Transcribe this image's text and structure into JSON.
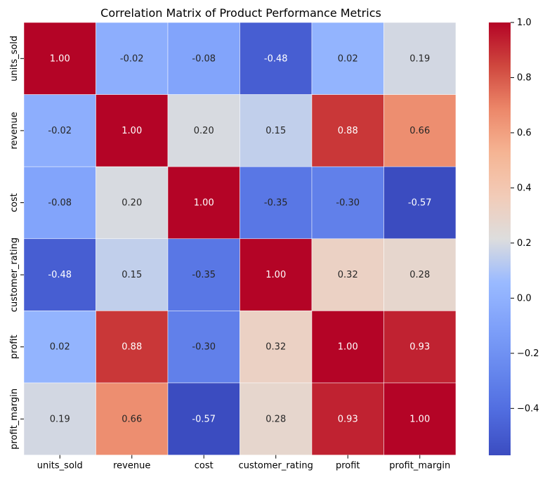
{
  "chart_data": {
    "type": "heatmap",
    "title": "Correlation Matrix of Product Performance Metrics",
    "x_labels": [
      "units_sold",
      "revenue",
      "cost",
      "customer_rating",
      "profit",
      "profit_margin"
    ],
    "y_labels": [
      "units_sold",
      "revenue",
      "cost",
      "customer_rating",
      "profit",
      "profit_margin"
    ],
    "values": [
      [
        1.0,
        -0.02,
        -0.08,
        -0.48,
        0.02,
        0.19
      ],
      [
        -0.02,
        1.0,
        0.2,
        0.15,
        0.88,
        0.66
      ],
      [
        -0.08,
        0.2,
        1.0,
        -0.35,
        -0.3,
        -0.57
      ],
      [
        -0.48,
        0.15,
        -0.35,
        1.0,
        0.32,
        0.28
      ],
      [
        0.02,
        0.88,
        -0.3,
        0.32,
        1.0,
        0.93
      ],
      [
        0.19,
        0.66,
        -0.57,
        0.28,
        0.93,
        1.0
      ]
    ],
    "value_format_decimals": 2,
    "colormap": "coolwarm",
    "vmin": -0.57,
    "vmax": 1.0,
    "colorbar_ticks": [
      -0.4,
      -0.2,
      0.0,
      0.2,
      0.4,
      0.6,
      0.8,
      1.0
    ],
    "colorbar_tick_labels": [
      "−0.4",
      "−0.2",
      "0.0",
      "0.2",
      "0.4",
      "0.6",
      "0.8",
      "1.0"
    ],
    "grid": false,
    "cell_border_color": "#ffffff"
  }
}
